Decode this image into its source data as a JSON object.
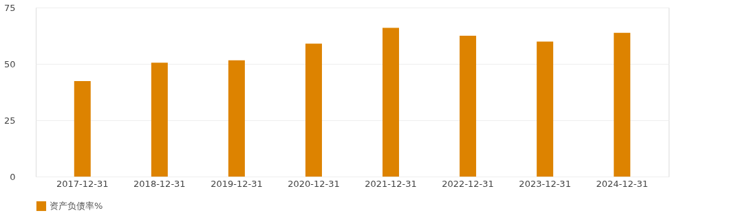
{
  "chart_data": {
    "type": "bar",
    "categories": [
      "2017-12-31",
      "2018-12-31",
      "2019-12-31",
      "2020-12-31",
      "2021-12-31",
      "2022-12-31",
      "2023-12-31",
      "2024-12-31"
    ],
    "series": [
      {
        "name": "资产负债率%",
        "color": "#dd8300",
        "values": [
          42.4,
          50.5,
          51.6,
          59.0,
          66.0,
          62.5,
          59.9,
          63.8
        ]
      }
    ],
    "ylim": [
      0,
      75
    ],
    "yticks": [
      0,
      25,
      50,
      75
    ],
    "grid": "y",
    "legend": "bottom"
  }
}
